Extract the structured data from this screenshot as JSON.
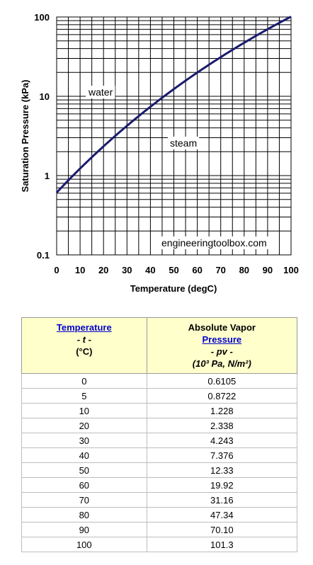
{
  "chart_data": {
    "type": "line",
    "title": "",
    "xlabel": "Temperature (degC)",
    "ylabel": "Saturation Pressure (kPa)",
    "xlim": [
      0,
      100
    ],
    "ylim": [
      0.1,
      100
    ],
    "y_scale": "log",
    "grid": true,
    "x_ticks": [
      "0",
      "10",
      "20",
      "30",
      "40",
      "50",
      "60",
      "70",
      "80",
      "90",
      "100"
    ],
    "y_ticks": [
      "0.1",
      "1",
      "10",
      "100"
    ],
    "line_color": "#1a1a6e",
    "series": [
      {
        "x": [
          0,
          5,
          10,
          20,
          30,
          40,
          50,
          60,
          70,
          80,
          90,
          100
        ],
        "y": [
          0.6105,
          0.8722,
          1.228,
          2.338,
          4.243,
          7.376,
          12.33,
          19.92,
          31.16,
          47.34,
          70.1,
          101.3
        ]
      }
    ],
    "annotations": [
      "water",
      "steam",
      "engineeringtoolbox.com"
    ]
  },
  "table": {
    "header_bg": "#ffffcc",
    "link_color": "#0000cc",
    "col1": {
      "link": "Temperature",
      "symbol": "- t -",
      "unit": "(°C)"
    },
    "col2": {
      "title": "Absolute Vapor",
      "link": "Pressure",
      "symbol": "- pv -",
      "unit": "(10³ Pa, N/m²)"
    },
    "rows": [
      [
        "0",
        "0.6105"
      ],
      [
        "5",
        "0.8722"
      ],
      [
        "10",
        "1.228"
      ],
      [
        "20",
        "2.338"
      ],
      [
        "30",
        "4.243"
      ],
      [
        "40",
        "7.376"
      ],
      [
        "50",
        "12.33"
      ],
      [
        "60",
        "19.92"
      ],
      [
        "70",
        "31.16"
      ],
      [
        "80",
        "47.34"
      ],
      [
        "90",
        "70.10"
      ],
      [
        "100",
        "101.3"
      ]
    ]
  }
}
